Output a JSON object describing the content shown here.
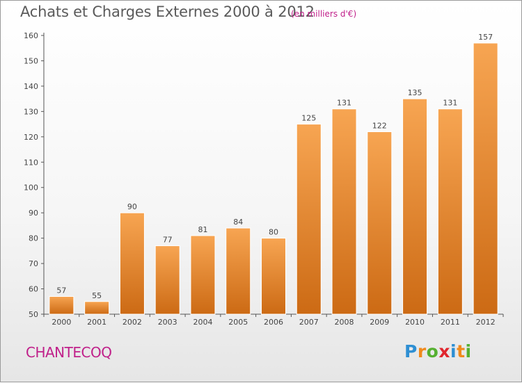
{
  "chart_data": {
    "type": "bar",
    "title": "Achats et Charges Externes 2000 à 2012",
    "subtitle": "(en milliers d'€)",
    "xlabel": "",
    "ylabel": "",
    "categories": [
      "2000",
      "2001",
      "2002",
      "2003",
      "2004",
      "2005",
      "2006",
      "2007",
      "2008",
      "2009",
      "2010",
      "2011",
      "2012"
    ],
    "values": [
      57,
      55,
      90,
      77,
      81,
      84,
      80,
      125,
      131,
      122,
      135,
      131,
      157
    ],
    "data_labels": [
      "57",
      "55",
      "90",
      "77",
      "81",
      "84",
      "80",
      "125",
      "131",
      "122",
      "135",
      "131",
      "157"
    ],
    "ylim": [
      50,
      160
    ],
    "yticks": [
      50,
      60,
      70,
      80,
      90,
      100,
      110,
      120,
      130,
      140,
      150,
      160
    ],
    "grid": false,
    "legend": "none",
    "bar_color": "#f0902f",
    "bar_color_dark": "#cf6f1a"
  },
  "footer": {
    "commune": "CHANTECOQ",
    "logo_letters": [
      "P",
      "r",
      "o",
      "x",
      "i",
      "t",
      "i"
    ],
    "logo_colors": [
      "#2e8fd3",
      "#f08a1c",
      "#55b030",
      "#e0262e",
      "#2e8fd3",
      "#f08a1c",
      "#55b030"
    ]
  },
  "colors": {
    "title": "#5a5a5a",
    "accent": "#c0208a"
  }
}
